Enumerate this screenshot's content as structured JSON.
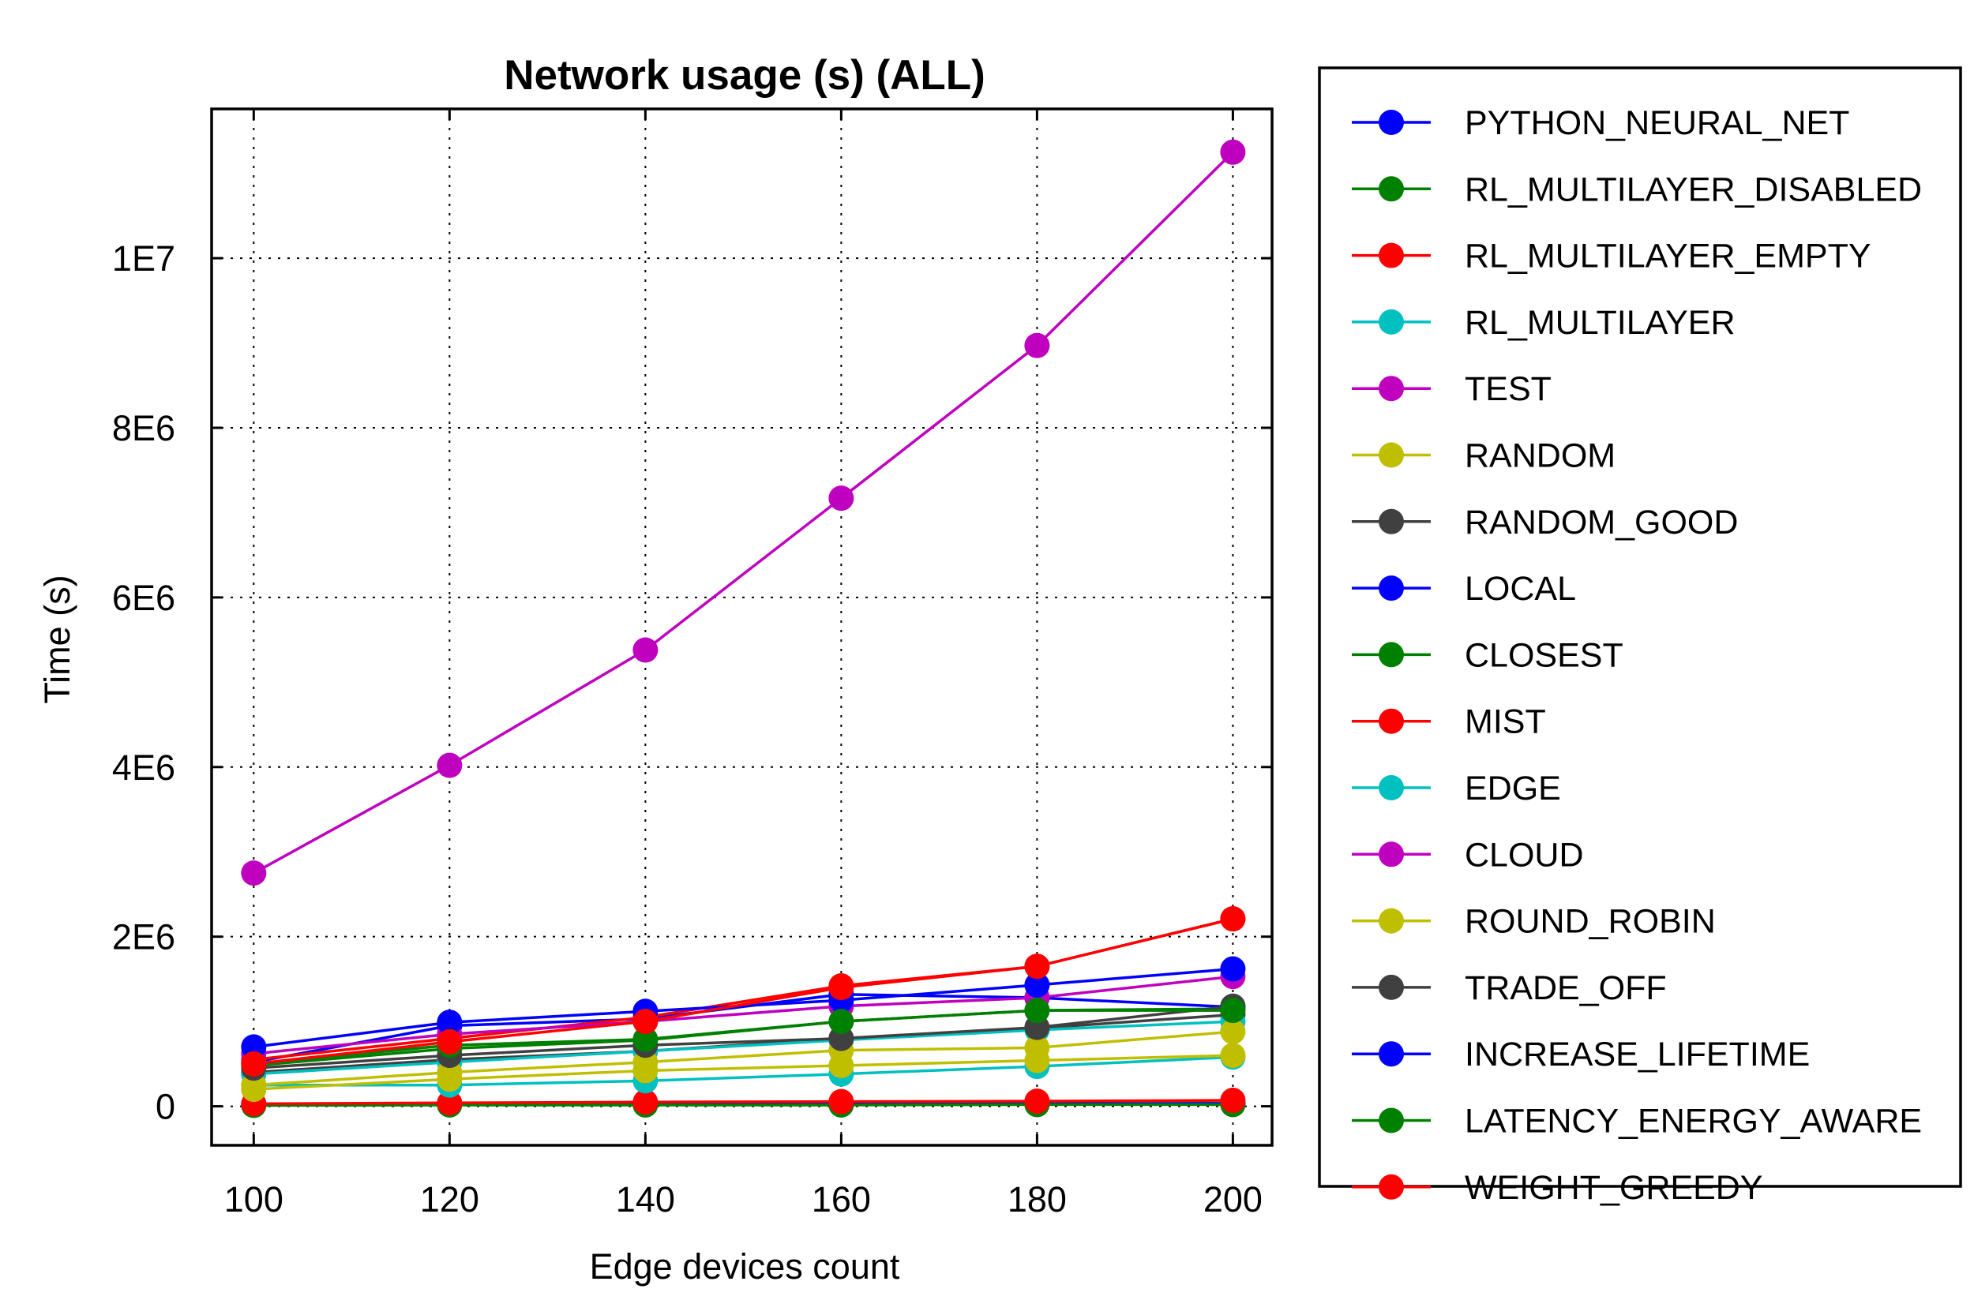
{
  "chart_data": {
    "type": "line",
    "title": "Network usage (s) (ALL)",
    "xlabel": "Edge devices count",
    "ylabel": "Time (s)",
    "x": [
      100,
      120,
      140,
      160,
      180,
      200
    ],
    "xlim": [
      95.7,
      204
    ],
    "ylim": [
      -460000,
      11760000
    ],
    "xticks": [
      100,
      120,
      140,
      160,
      180,
      200
    ],
    "yticks": [
      0,
      2000000,
      4000000,
      6000000,
      8000000,
      10000000
    ],
    "ytick_labels": [
      "0",
      "2E6",
      "4E6",
      "6E6",
      "8E6",
      "1E7"
    ],
    "grid": true,
    "legend_position": "outside-right",
    "series": [
      {
        "name": "PYTHON_NEURAL_NET",
        "color": "#0000ff",
        "values": [
          20000,
          25000,
          30000,
          30000,
          30000,
          35000
        ]
      },
      {
        "name": "RL_MULTILAYER_DISABLED",
        "color": "#008000",
        "values": [
          10000,
          15000,
          15000,
          15000,
          20000,
          20000
        ]
      },
      {
        "name": "RL_MULTILAYER_EMPTY",
        "color": "#ff0000",
        "values": [
          30000,
          40000,
          50000,
          55000,
          60000,
          70000
        ]
      },
      {
        "name": "RL_MULTILAYER",
        "color": "#00c0c0",
        "values": [
          250000,
          250000,
          300000,
          380000,
          470000,
          580000
        ]
      },
      {
        "name": "TEST",
        "color": "#bf00bf",
        "values": [
          2750000,
          4020000,
          5380000,
          7170000,
          8970000,
          11250000
        ]
      },
      {
        "name": "RANDOM",
        "color": "#bfbf00",
        "values": [
          200000,
          320000,
          420000,
          480000,
          540000,
          600000
        ]
      },
      {
        "name": "RANDOM_GOOD",
        "color": "#404040",
        "values": [
          400000,
          550000,
          650000,
          800000,
          920000,
          1080000
        ]
      },
      {
        "name": "LOCAL",
        "color": "#0000ff",
        "values": [
          520000,
          950000,
          1030000,
          1320000,
          1280000,
          1170000
        ]
      },
      {
        "name": "CLOSEST",
        "color": "#008000",
        "values": [
          480000,
          680000,
          780000,
          1000000,
          1130000,
          1150000
        ]
      },
      {
        "name": "MIST",
        "color": "#ff0000",
        "values": [
          550000,
          800000,
          1050000,
          1420000,
          1650000,
          2210000
        ]
      },
      {
        "name": "EDGE",
        "color": "#00c0c0",
        "values": [
          380000,
          520000,
          650000,
          780000,
          900000,
          1000000
        ]
      },
      {
        "name": "CLOUD",
        "color": "#bf00bf",
        "values": [
          620000,
          850000,
          1000000,
          1180000,
          1280000,
          1530000
        ]
      },
      {
        "name": "ROUND_ROBIN",
        "color": "#bfbf00",
        "values": [
          250000,
          400000,
          520000,
          660000,
          690000,
          880000
        ]
      },
      {
        "name": "TRADE_OFF",
        "color": "#404040",
        "values": [
          450000,
          600000,
          720000,
          800000,
          930000,
          1180000
        ]
      },
      {
        "name": "INCREASE_LIFETIME",
        "color": "#0000ff",
        "values": [
          700000,
          990000,
          1120000,
          1250000,
          1430000,
          1620000
        ]
      },
      {
        "name": "LATENCY_ENERGY_AWARE",
        "color": "#008000",
        "values": [
          500000,
          720000,
          790000,
          1000000,
          1130000,
          1130000
        ]
      },
      {
        "name": "WEIGHT_GREEDY",
        "color": "#ff0000",
        "values": [
          500000,
          760000,
          1000000,
          1400000,
          1650000,
          2210000
        ]
      }
    ]
  }
}
